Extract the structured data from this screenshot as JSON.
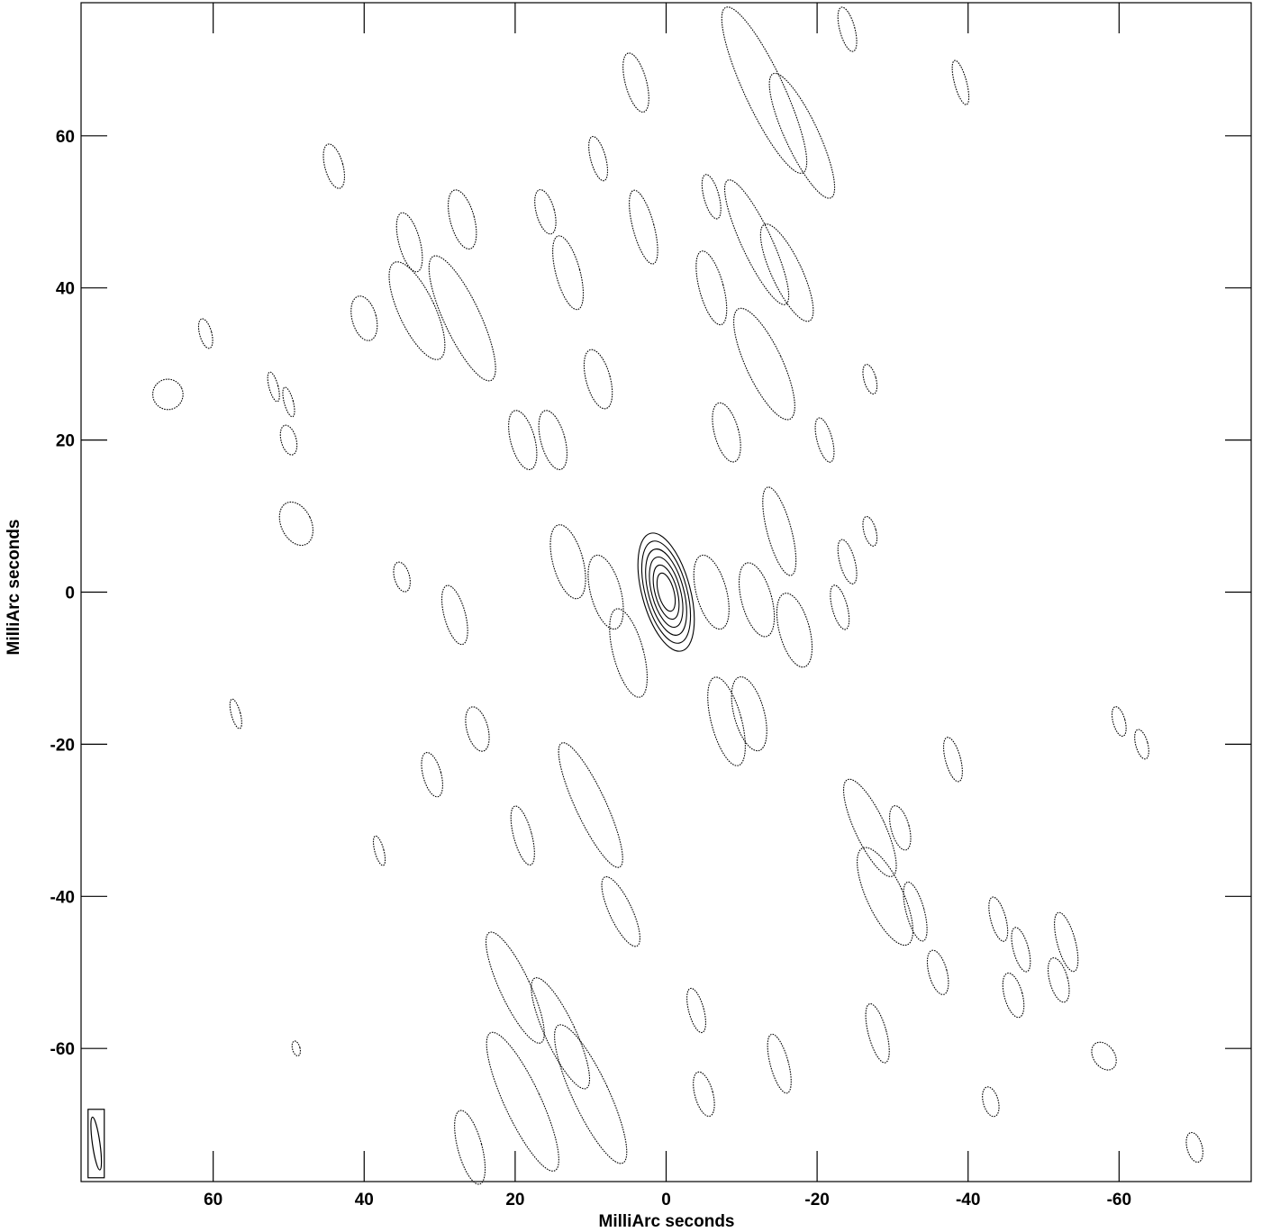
{
  "chart_data": {
    "type": "contour",
    "title": "",
    "xlabel": "MilliArc seconds",
    "ylabel": "MilliArc seconds",
    "xlim": [
      77.5,
      -77.5
    ],
    "ylim": [
      -77.5,
      77.5
    ],
    "x_ticks": [
      60,
      40,
      20,
      0,
      -20,
      -40,
      -60
    ],
    "y_ticks": [
      60,
      40,
      20,
      0,
      -20,
      -40,
      -60
    ],
    "x_tick_labels": [
      "60",
      "40",
      "20",
      "0",
      "-20",
      "-40",
      "-60"
    ],
    "y_tick_labels": [
      "60",
      "40",
      "20",
      "0",
      "-20",
      "-40",
      "-60"
    ],
    "grid": false,
    "core": {
      "x": 0,
      "y": 0,
      "pa_deg": -15,
      "levels": 6
    },
    "beam": {
      "x": 75.5,
      "y": -72.5,
      "major": 7.0,
      "minor": 1.0,
      "pa_deg": -8
    },
    "sidelobe_features": [
      {
        "x": 13,
        "y": 4,
        "w": 2.0,
        "h": 5,
        "pa": -15
      },
      {
        "x": 8,
        "y": 0,
        "w": 2.0,
        "h": 5,
        "pa": -15
      },
      {
        "x": -6,
        "y": 0,
        "w": 2.0,
        "h": 5,
        "pa": -15
      },
      {
        "x": -12,
        "y": -1,
        "w": 2.0,
        "h": 5,
        "pa": -15
      },
      {
        "x": -17,
        "y": -5,
        "w": 2.0,
        "h": 5,
        "pa": -15
      },
      {
        "x": 5,
        "y": -8,
        "w": 2.0,
        "h": 6,
        "pa": -15
      },
      {
        "x": -8,
        "y": -17,
        "w": 2.0,
        "h": 6,
        "pa": -15
      },
      {
        "x": -11,
        "y": -16,
        "w": 2.0,
        "h": 5,
        "pa": -15
      },
      {
        "x": 19,
        "y": 20,
        "w": 1.6,
        "h": 4,
        "pa": -15
      },
      {
        "x": 15,
        "y": 20,
        "w": 1.6,
        "h": 4,
        "pa": -15
      },
      {
        "x": 9,
        "y": 28,
        "w": 1.6,
        "h": 4,
        "pa": -15
      },
      {
        "x": -8,
        "y": 21,
        "w": 1.6,
        "h": 4,
        "pa": -15
      },
      {
        "x": -6,
        "y": 40,
        "w": 1.6,
        "h": 5,
        "pa": -15
      },
      {
        "x": 13,
        "y": 42,
        "w": 1.6,
        "h": 5,
        "pa": -15
      },
      {
        "x": 27,
        "y": 49,
        "w": 1.6,
        "h": 4,
        "pa": -15
      },
      {
        "x": 34,
        "y": 46,
        "w": 1.4,
        "h": 4,
        "pa": -15
      },
      {
        "x": 40,
        "y": 36,
        "w": 1.6,
        "h": 3,
        "pa": -15
      },
      {
        "x": 44,
        "y": 56,
        "w": 1.2,
        "h": 3,
        "pa": -15
      },
      {
        "x": 50,
        "y": 20,
        "w": 1.0,
        "h": 2,
        "pa": -15
      },
      {
        "x": 61,
        "y": 34,
        "w": 0.8,
        "h": 2,
        "pa": -15
      },
      {
        "x": 66,
        "y": 26,
        "w": 2.0,
        "h": 2,
        "pa": -25
      },
      {
        "x": 49,
        "y": 9,
        "w": 2.0,
        "h": 3,
        "pa": -25
      },
      {
        "x": 28,
        "y": -3,
        "w": 1.4,
        "h": 4,
        "pa": -15
      },
      {
        "x": 25,
        "y": -18,
        "w": 1.4,
        "h": 3,
        "pa": -15
      },
      {
        "x": 31,
        "y": -24,
        "w": 1.2,
        "h": 3,
        "pa": -15
      },
      {
        "x": 19,
        "y": -32,
        "w": 1.2,
        "h": 4,
        "pa": -15
      },
      {
        "x": 10,
        "y": -28,
        "w": 2.0,
        "h": 9,
        "pa": -25
      },
      {
        "x": 6,
        "y": -42,
        "w": 1.5,
        "h": 5,
        "pa": -25
      },
      {
        "x": 20,
        "y": -52,
        "w": 2.0,
        "h": 8,
        "pa": -25
      },
      {
        "x": 14,
        "y": -58,
        "w": 2.0,
        "h": 8,
        "pa": -25
      },
      {
        "x": 19,
        "y": -67,
        "w": 2.4,
        "h": 10,
        "pa": -25
      },
      {
        "x": 10,
        "y": -66,
        "w": 2.4,
        "h": 10,
        "pa": -25
      },
      {
        "x": 26,
        "y": -73,
        "w": 1.6,
        "h": 5,
        "pa": -15
      },
      {
        "x": -4,
        "y": -55,
        "w": 1.0,
        "h": 3,
        "pa": -15
      },
      {
        "x": -5,
        "y": -66,
        "w": 1.2,
        "h": 3,
        "pa": -15
      },
      {
        "x": -15,
        "y": -62,
        "w": 1.2,
        "h": 4,
        "pa": -15
      },
      {
        "x": -28,
        "y": -58,
        "w": 1.2,
        "h": 4,
        "pa": -15
      },
      {
        "x": -36,
        "y": -50,
        "w": 1.2,
        "h": 3,
        "pa": -15
      },
      {
        "x": -27,
        "y": -31,
        "w": 2.0,
        "h": 7,
        "pa": -25
      },
      {
        "x": -31,
        "y": -31,
        "w": 1.2,
        "h": 3,
        "pa": -15
      },
      {
        "x": -29,
        "y": -40,
        "w": 2.4,
        "h": 7,
        "pa": -25
      },
      {
        "x": -33,
        "y": -42,
        "w": 1.2,
        "h": 4,
        "pa": -15
      },
      {
        "x": -44,
        "y": -43,
        "w": 1.0,
        "h": 3,
        "pa": -15
      },
      {
        "x": -47,
        "y": -47,
        "w": 1.0,
        "h": 3,
        "pa": -15
      },
      {
        "x": -53,
        "y": -46,
        "w": 1.2,
        "h": 4,
        "pa": -15
      },
      {
        "x": -46,
        "y": -53,
        "w": 1.2,
        "h": 3,
        "pa": -15
      },
      {
        "x": -52,
        "y": -51,
        "w": 1.2,
        "h": 3,
        "pa": -15
      },
      {
        "x": -58,
        "y": -61,
        "w": 1.4,
        "h": 2,
        "pa": -35
      },
      {
        "x": -43,
        "y": -67,
        "w": 1.0,
        "h": 2,
        "pa": -15
      },
      {
        "x": -70,
        "y": -73,
        "w": 1.0,
        "h": 2,
        "pa": -15
      },
      {
        "x": -60,
        "y": -17,
        "w": 0.8,
        "h": 2,
        "pa": -15
      },
      {
        "x": -63,
        "y": -20,
        "w": 0.8,
        "h": 2,
        "pa": -15
      },
      {
        "x": -38,
        "y": -22,
        "w": 1.0,
        "h": 3,
        "pa": -15
      },
      {
        "x": -39,
        "y": 67,
        "w": 0.8,
        "h": 3,
        "pa": -15
      },
      {
        "x": -24,
        "y": 74,
        "w": 1.0,
        "h": 3,
        "pa": -15
      },
      {
        "x": -18,
        "y": 60,
        "w": 2.2,
        "h": 9,
        "pa": -25
      },
      {
        "x": -13,
        "y": 66,
        "w": 2.6,
        "h": 12,
        "pa": -25
      },
      {
        "x": -12,
        "y": 46,
        "w": 2.0,
        "h": 9,
        "pa": -25
      },
      {
        "x": -16,
        "y": 42,
        "w": 2.0,
        "h": 7,
        "pa": -25
      },
      {
        "x": -13,
        "y": 30,
        "w": 2.4,
        "h": 8,
        "pa": -25
      },
      {
        "x": 27,
        "y": 36,
        "w": 2.4,
        "h": 9,
        "pa": -25
      },
      {
        "x": 33,
        "y": 37,
        "w": 2.4,
        "h": 7,
        "pa": -25
      },
      {
        "x": 4,
        "y": 67,
        "w": 1.4,
        "h": 4,
        "pa": -15
      },
      {
        "x": 9,
        "y": 57,
        "w": 1.0,
        "h": 3,
        "pa": -15
      },
      {
        "x": 16,
        "y": 50,
        "w": 1.2,
        "h": 3,
        "pa": -15
      },
      {
        "x": 3,
        "y": 48,
        "w": 1.4,
        "h": 5,
        "pa": -15
      },
      {
        "x": -6,
        "y": 52,
        "w": 1.0,
        "h": 3,
        "pa": -15
      },
      {
        "x": -15,
        "y": 8,
        "w": 1.6,
        "h": 6,
        "pa": -15
      },
      {
        "x": -23,
        "y": -2,
        "w": 1.0,
        "h": 3,
        "pa": -15
      },
      {
        "x": -24,
        "y": 4,
        "w": 1.0,
        "h": 3,
        "pa": -15
      },
      {
        "x": -21,
        "y": 20,
        "w": 1.0,
        "h": 3,
        "pa": -15
      },
      {
        "x": -27,
        "y": 28,
        "w": 0.8,
        "h": 2,
        "pa": -15
      },
      {
        "x": -27,
        "y": 8,
        "w": 0.8,
        "h": 2,
        "pa": -15
      },
      {
        "x": 38,
        "y": -34,
        "w": 0.6,
        "h": 2,
        "pa": -15
      },
      {
        "x": 52,
        "y": 27,
        "w": 0.6,
        "h": 2,
        "pa": -15
      },
      {
        "x": 50,
        "y": 25,
        "w": 0.6,
        "h": 2,
        "pa": -15
      },
      {
        "x": 57,
        "y": -16,
        "w": 0.6,
        "h": 2,
        "pa": -15
      },
      {
        "x": 49,
        "y": -60,
        "w": 0.5,
        "h": 1,
        "pa": -15
      },
      {
        "x": 35,
        "y": 2,
        "w": 1.0,
        "h": 2,
        "pa": -15
      }
    ]
  },
  "colors": {
    "line": "#000000",
    "background": "#ffffff"
  }
}
